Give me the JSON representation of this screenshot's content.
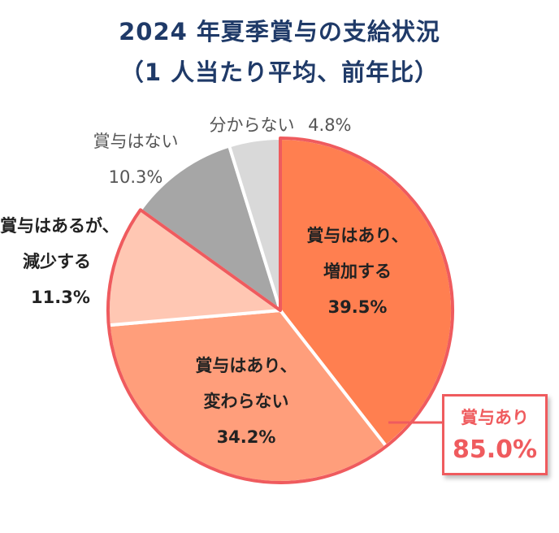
{
  "title_line1": "2024 年夏季賞与の支給状況",
  "title_line2": "（1 人当たり平均、前年比）",
  "chart_data": {
    "type": "pie",
    "slices": [
      {
        "label_lines": [
          "賞与はあり、",
          "増加する"
        ],
        "value": 39.5,
        "value_text": "39.5%",
        "color": "#ff7f50"
      },
      {
        "label_lines": [
          "賞与はあり、",
          "変わらない"
        ],
        "value": 34.2,
        "value_text": "34.2%",
        "color": "#ff9e7b"
      },
      {
        "label_lines": [
          "賞与はあるが、",
          "減少する"
        ],
        "value": 11.3,
        "value_text": "11.3%",
        "color": "#ffc7b3"
      },
      {
        "label_lines": [
          "賞与はない"
        ],
        "value": 10.3,
        "value_text": "10.3%",
        "color": "#a6a6a6"
      },
      {
        "label_lines": [
          "分からない"
        ],
        "value": 4.8,
        "value_text": "4.8%",
        "color": "#d9d9d9"
      }
    ],
    "group_highlight": {
      "label": "賞与あり",
      "value": 85.0,
      "value_text": "85.0%",
      "color": "#ef5b5e"
    }
  }
}
